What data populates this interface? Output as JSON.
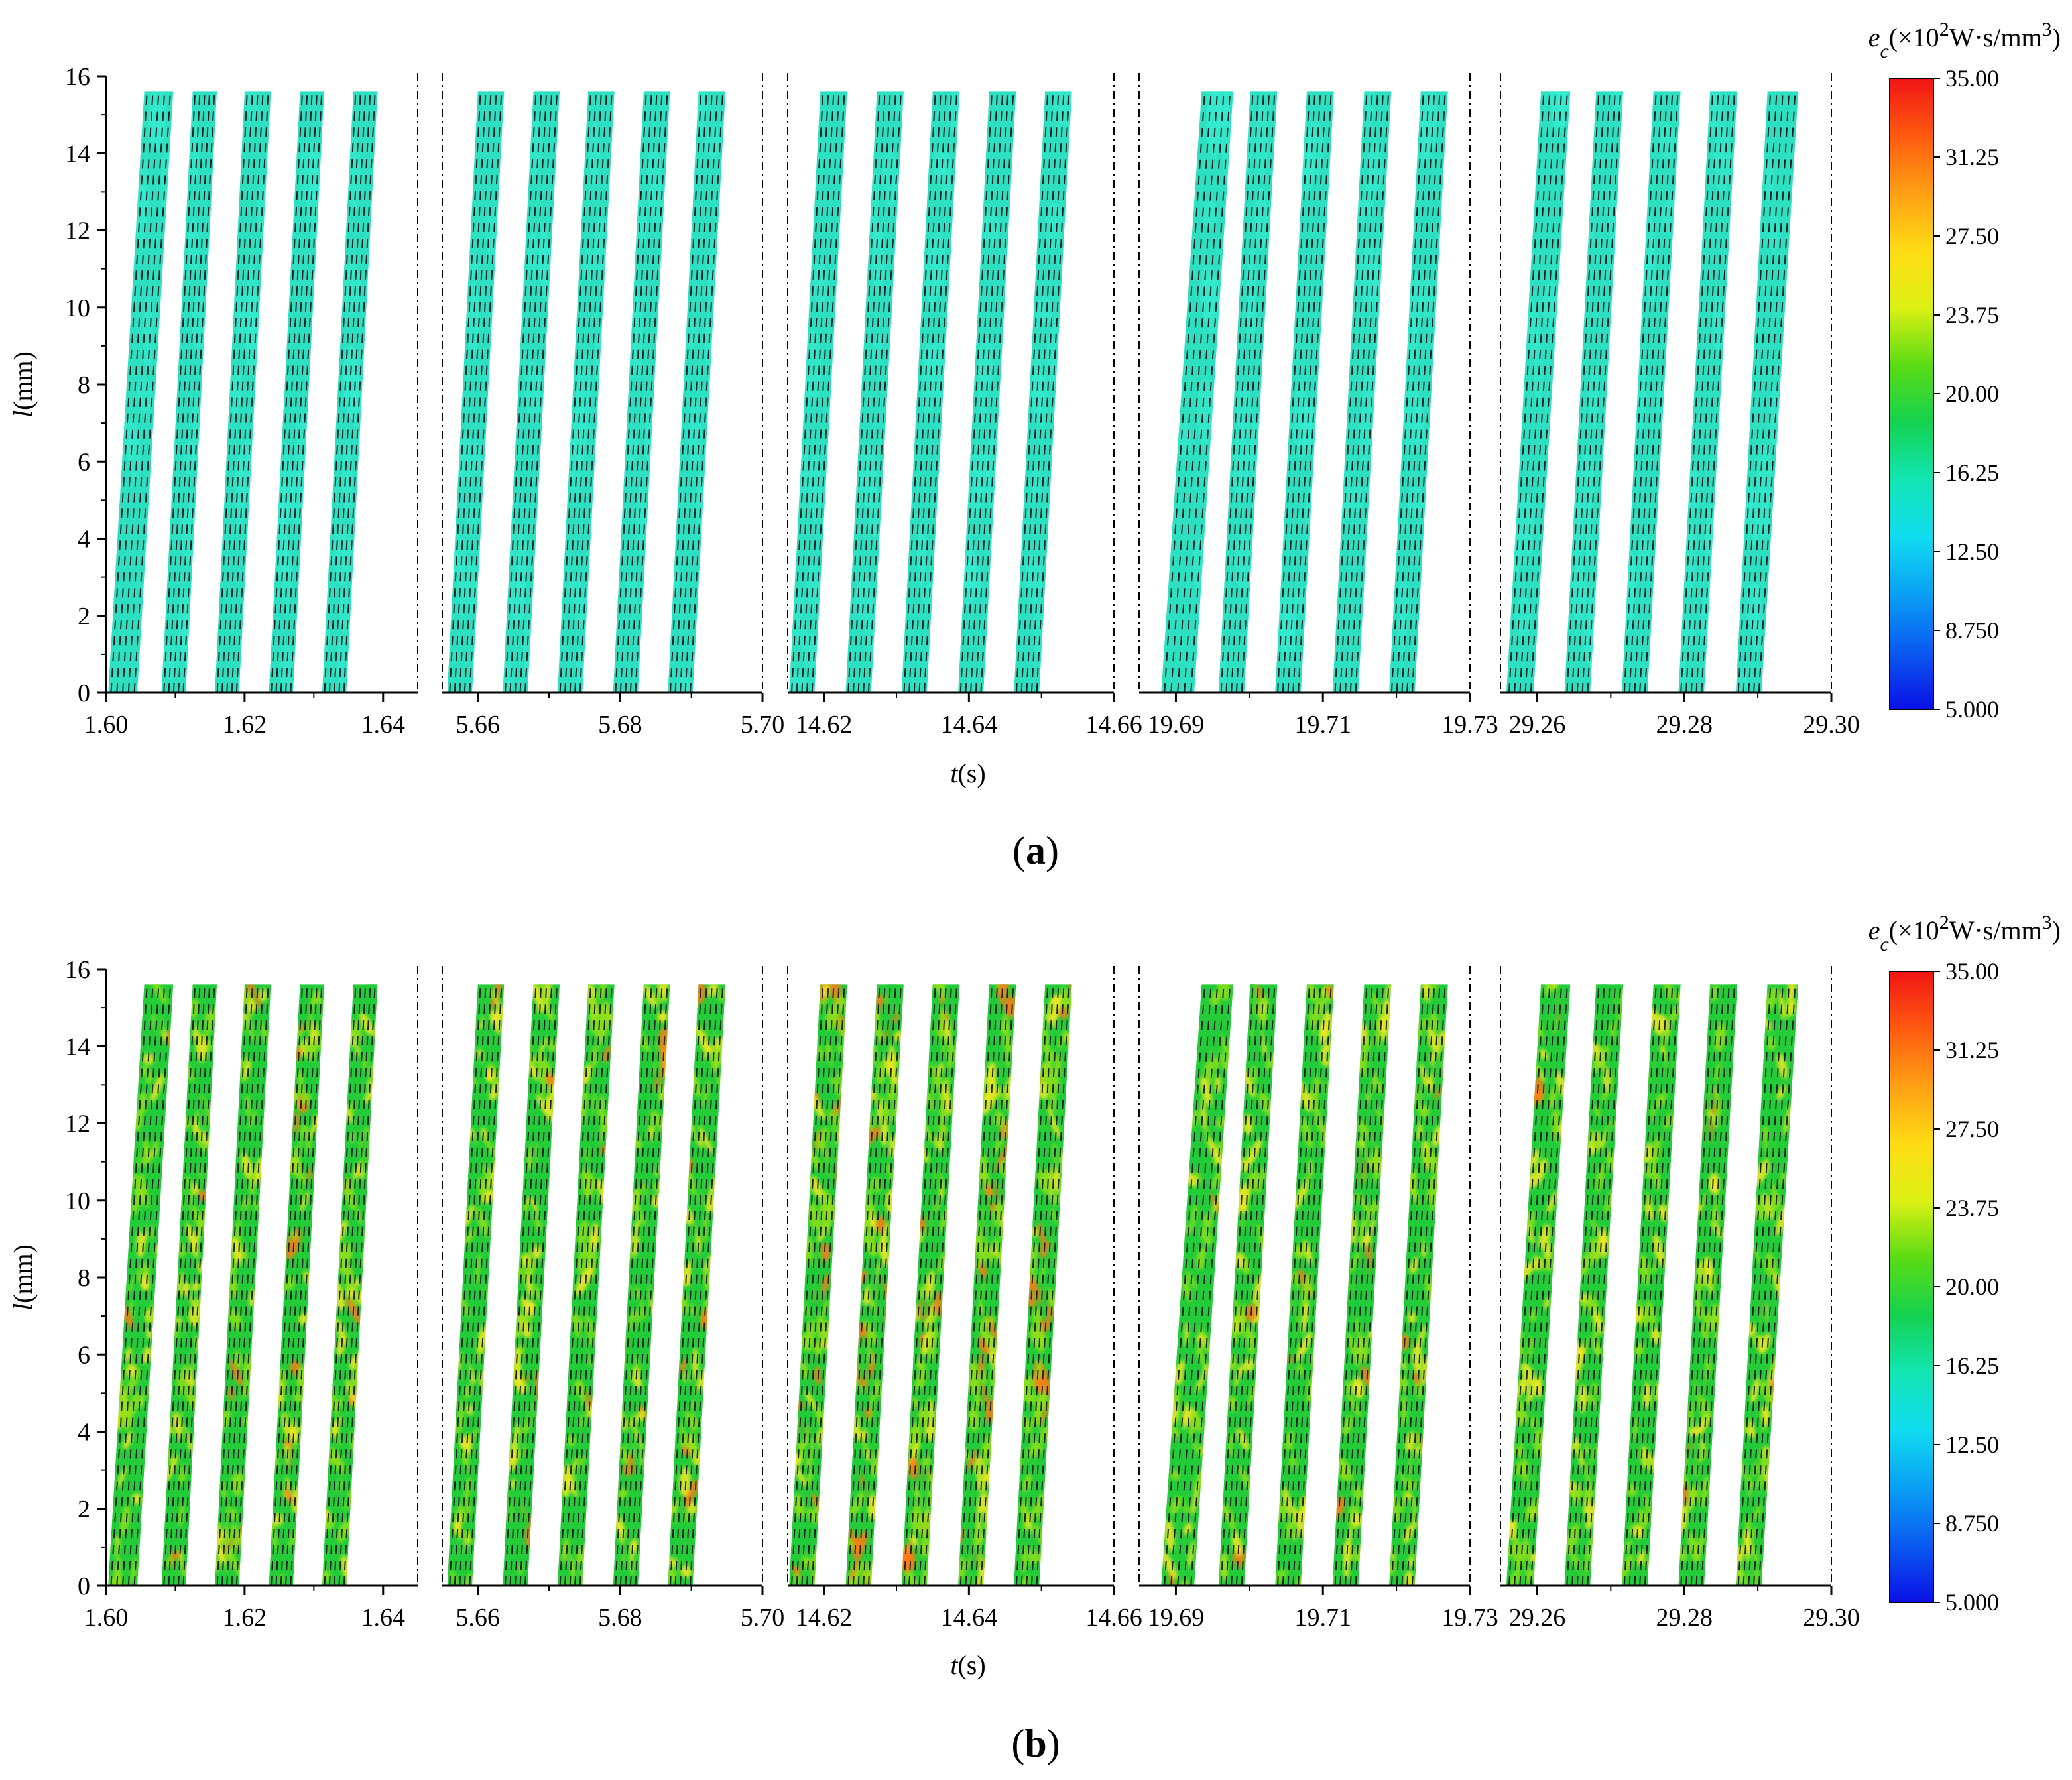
{
  "chart_data": [
    {
      "type": "heatmap",
      "panel": "a",
      "caption": "(a)",
      "style": "uniform",
      "xlabel_var": "t",
      "xlabel_unit": "(s)",
      "ylabel_var": "l",
      "ylabel_unit": "(mm)",
      "ylim": [
        0,
        16
      ],
      "yticks": [
        "0",
        "2",
        "4",
        "6",
        "8",
        "10",
        "12",
        "14",
        "16"
      ],
      "subplots": [
        {
          "xlim": [
            1.6,
            1.645
          ],
          "ticks": [
            {
              "v": 1.6,
              "label": "1.60"
            },
            {
              "v": 1.62,
              "label": "1.62"
            },
            {
              "v": 1.64,
              "label": "1.64"
            }
          ],
          "bands": [
            [
              1.6003,
              1.6045,
              1.6055,
              1.6097
            ],
            [
              1.608,
              1.6115,
              1.6125,
              1.616
            ],
            [
              1.6157,
              1.6192,
              1.62,
              1.6238
            ],
            [
              1.6235,
              1.627,
              1.628,
              1.6315
            ],
            [
              1.6312,
              1.6347,
              1.6357,
              1.6392
            ]
          ]
        },
        {
          "xlim": [
            5.655,
            5.7
          ],
          "ticks": [
            {
              "v": 5.66,
              "label": "5.66"
            },
            {
              "v": 5.68,
              "label": "5.68"
            },
            {
              "v": 5.7,
              "label": "5.70"
            }
          ],
          "bands": [
            [
              5.6557,
              5.6592,
              5.66,
              5.6637
            ],
            [
              5.6635,
              5.667,
              5.6678,
              5.6715
            ],
            [
              5.6712,
              5.6747,
              5.6755,
              5.6792
            ],
            [
              5.679,
              5.6825,
              5.6833,
              5.687
            ],
            [
              5.6867,
              5.6902,
              5.691,
              5.6948
            ]
          ]
        },
        {
          "xlim": [
            14.615,
            14.66
          ],
          "ticks": [
            {
              "v": 14.62,
              "label": "14.62"
            },
            {
              "v": 14.64,
              "label": "14.64"
            },
            {
              "v": 14.66,
              "label": "14.66"
            }
          ],
          "bands": [
            [
              14.6152,
              14.6187,
              14.6195,
              14.6232
            ],
            [
              14.623,
              14.6265,
              14.6273,
              14.631
            ],
            [
              14.6307,
              14.6342,
              14.635,
              14.6387
            ],
            [
              14.6385,
              14.642,
              14.6428,
              14.6465
            ],
            [
              14.6462,
              14.6497,
              14.6505,
              14.6542
            ]
          ]
        },
        {
          "xlim": [
            19.685,
            19.73
          ],
          "ticks": [
            {
              "v": 19.69,
              "label": "19.69"
            },
            {
              "v": 19.71,
              "label": "19.71"
            },
            {
              "v": 19.73,
              "label": "19.73"
            }
          ],
          "bands": [
            [
              19.688,
              19.6925,
              19.6935,
              19.6978
            ],
            [
              19.6958,
              19.6993,
              19.7001,
              19.7038
            ],
            [
              19.7035,
              19.707,
              19.7078,
              19.7115
            ],
            [
              19.7113,
              19.7148,
              19.7156,
              19.7193
            ],
            [
              19.719,
              19.7225,
              19.7233,
              19.727
            ]
          ]
        },
        {
          "xlim": [
            29.255,
            29.3
          ],
          "ticks": [
            {
              "v": 29.26,
              "label": "29.26"
            },
            {
              "v": 29.28,
              "label": "29.28"
            },
            {
              "v": 29.3,
              "label": "29.30"
            }
          ],
          "bands": [
            [
              29.2558,
              29.2595,
              29.2605,
              29.2645
            ],
            [
              29.2637,
              29.2672,
              29.268,
              29.2717
            ],
            [
              29.2715,
              29.275,
              29.2758,
              29.2795
            ],
            [
              29.2792,
              29.2827,
              29.2835,
              29.2872
            ],
            [
              29.287,
              29.2905,
              29.2913,
              29.2955
            ]
          ]
        }
      ]
    },
    {
      "type": "heatmap",
      "panel": "b",
      "caption": "(b)",
      "style": "varied",
      "xlabel_var": "t",
      "xlabel_unit": "(s)",
      "ylabel_var": "l",
      "ylabel_unit": "(mm)",
      "ylim": [
        0,
        16
      ],
      "yticks": [
        "0",
        "2",
        "4",
        "6",
        "8",
        "10",
        "12",
        "14",
        "16"
      ],
      "subplots": [
        {
          "xlim": [
            1.6,
            1.645
          ],
          "ticks": [
            {
              "v": 1.6,
              "label": "1.60"
            },
            {
              "v": 1.62,
              "label": "1.62"
            },
            {
              "v": 1.64,
              "label": "1.64"
            }
          ],
          "bands": [
            [
              1.6003,
              1.6045,
              1.6055,
              1.6097
            ],
            [
              1.608,
              1.6115,
              1.6125,
              1.616
            ],
            [
              1.6157,
              1.6192,
              1.62,
              1.6238
            ],
            [
              1.6235,
              1.627,
              1.628,
              1.6315
            ],
            [
              1.6312,
              1.6347,
              1.6357,
              1.6392
            ]
          ]
        },
        {
          "xlim": [
            5.655,
            5.7
          ],
          "ticks": [
            {
              "v": 5.66,
              "label": "5.66"
            },
            {
              "v": 5.68,
              "label": "5.68"
            },
            {
              "v": 5.7,
              "label": "5.70"
            }
          ],
          "bands": [
            [
              5.6557,
              5.6592,
              5.66,
              5.6637
            ],
            [
              5.6635,
              5.667,
              5.6678,
              5.6715
            ],
            [
              5.6712,
              5.6747,
              5.6755,
              5.6792
            ],
            [
              5.679,
              5.6825,
              5.6833,
              5.687
            ],
            [
              5.6867,
              5.6902,
              5.691,
              5.6948
            ]
          ]
        },
        {
          "xlim": [
            14.615,
            14.66
          ],
          "ticks": [
            {
              "v": 14.62,
              "label": "14.62"
            },
            {
              "v": 14.64,
              "label": "14.64"
            },
            {
              "v": 14.66,
              "label": "14.66"
            }
          ],
          "bands": [
            [
              14.6152,
              14.6187,
              14.6195,
              14.6232
            ],
            [
              14.623,
              14.6265,
              14.6273,
              14.631
            ],
            [
              14.6307,
              14.6342,
              14.635,
              14.6387
            ],
            [
              14.6385,
              14.642,
              14.6428,
              14.6465
            ],
            [
              14.6462,
              14.6497,
              14.6505,
              14.6542
            ]
          ]
        },
        {
          "xlim": [
            19.685,
            19.73
          ],
          "ticks": [
            {
              "v": 19.69,
              "label": "19.69"
            },
            {
              "v": 19.71,
              "label": "19.71"
            },
            {
              "v": 19.73,
              "label": "19.73"
            }
          ],
          "bands": [
            [
              19.688,
              19.6925,
              19.6935,
              19.6978
            ],
            [
              19.6958,
              19.6993,
              19.7001,
              19.7038
            ],
            [
              19.7035,
              19.707,
              19.7078,
              19.7115
            ],
            [
              19.7113,
              19.7148,
              19.7156,
              19.7193
            ],
            [
              19.719,
              19.7225,
              19.7233,
              19.727
            ]
          ]
        },
        {
          "xlim": [
            29.255,
            29.3
          ],
          "ticks": [
            {
              "v": 29.26,
              "label": "29.26"
            },
            {
              "v": 29.28,
              "label": "29.28"
            },
            {
              "v": 29.3,
              "label": "29.30"
            }
          ],
          "bands": [
            [
              29.2558,
              29.2595,
              29.2605,
              29.2645
            ],
            [
              29.2637,
              29.2672,
              29.268,
              29.2717
            ],
            [
              29.2715,
              29.275,
              29.2758,
              29.2795
            ],
            [
              29.2792,
              29.2827,
              29.2835,
              29.2872
            ],
            [
              29.287,
              29.2905,
              29.2913,
              29.2955
            ]
          ]
        }
      ]
    }
  ],
  "colorbar": {
    "title_var": "e",
    "title_sub": "c",
    "title_pre": "(×10",
    "title_exp": "2",
    "title_mid": "W·s/mm",
    "title_exp2": "3",
    "title_post": ")",
    "range": [
      5.0,
      35.0
    ],
    "labels": [
      "35.00",
      "31.25",
      "27.50",
      "23.75",
      "20.00",
      "16.25",
      "12.50",
      "8.750",
      "5.000"
    ],
    "colors": [
      "#0a10e6",
      "#0a5af0",
      "#0aa0f5",
      "#10dcf0",
      "#12e6b4",
      "#14d250",
      "#5adc14",
      "#dcf014",
      "#ffdc14",
      "#ffa014",
      "#ff5a10",
      "#f01414"
    ]
  },
  "colors": {
    "uniform_fill": "#2ee0c2",
    "uniform_spot": "#3af0d8",
    "varied_base": "#24cc3a",
    "varied_mid": "#8ee01c",
    "varied_hot": "#f0e828",
    "varied_peak": "#ff7a14"
  }
}
